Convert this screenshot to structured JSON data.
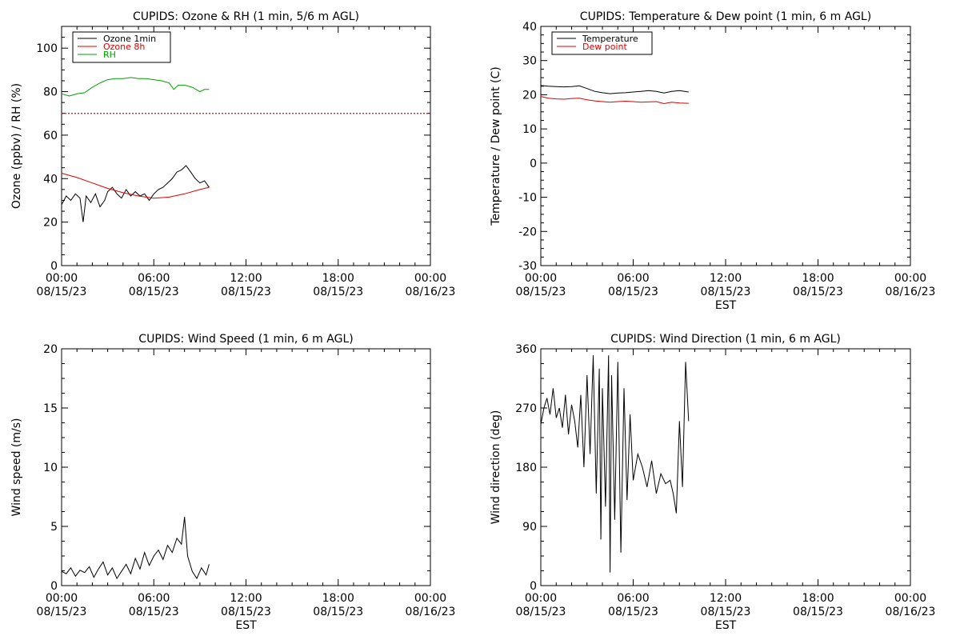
{
  "chart_data": [
    {
      "type": "line",
      "title": "CUPIDS: Ozone & RH (1 min, 5/6 m AGL)",
      "ylabel": "Ozone (ppbv) / RH (%)",
      "xlabel": "",
      "xlim": [
        0,
        24
      ],
      "ylim": [
        0,
        110
      ],
      "yticks": [
        0,
        20,
        40,
        60,
        80,
        100
      ],
      "xticks": [
        {
          "hour": 0,
          "time": "00:00",
          "date": "08/15/23"
        },
        {
          "hour": 6,
          "time": "06:00",
          "date": "08/15/23"
        },
        {
          "hour": 12,
          "time": "12:00",
          "date": "08/15/23"
        },
        {
          "hour": 18,
          "time": "18:00",
          "date": "08/15/23"
        },
        {
          "hour": 24,
          "time": "00:00",
          "date": "08/16/23"
        }
      ],
      "legend_position": "top-left",
      "reference_lines": [
        {
          "y": 70,
          "style": "dotted",
          "color": "#dd0000"
        }
      ],
      "series": [
        {
          "name": "Ozone 1min",
          "color": "#000000",
          "x": [
            0,
            0.3,
            0.6,
            0.9,
            1.2,
            1.4,
            1.6,
            1.9,
            2.2,
            2.5,
            2.8,
            3.0,
            3.3,
            3.6,
            3.9,
            4.2,
            4.5,
            4.8,
            5.1,
            5.4,
            5.7,
            6.0,
            6.3,
            6.6,
            6.9,
            7.2,
            7.5,
            7.8,
            8.1,
            8.4,
            8.7,
            9.0,
            9.3,
            9.6
          ],
          "y": [
            28,
            32,
            30,
            33,
            31,
            20,
            32,
            29,
            33,
            27,
            30,
            34,
            36,
            33,
            31,
            35,
            32,
            34,
            32,
            33,
            30,
            33,
            35,
            36,
            38,
            40,
            43,
            44,
            46,
            43,
            40,
            38,
            39,
            36
          ]
        },
        {
          "name": "Ozone 8h",
          "color": "#dd0000",
          "x": [
            0,
            1,
            2,
            3,
            4,
            5,
            6,
            7,
            8,
            9,
            9.6
          ],
          "y": [
            42.5,
            40.5,
            38,
            35.5,
            33.5,
            32,
            31,
            31.5,
            33,
            35,
            36
          ]
        },
        {
          "name": "RH",
          "color": "#00a000",
          "x": [
            0,
            0.5,
            1.0,
            1.5,
            2.0,
            2.5,
            3.0,
            3.5,
            4.0,
            4.5,
            5.0,
            5.5,
            6.0,
            6.5,
            7.0,
            7.3,
            7.6,
            8.0,
            8.5,
            9.0,
            9.3,
            9.6
          ],
          "y": [
            79,
            78,
            79,
            79.5,
            82,
            84,
            85.5,
            86,
            86,
            86.5,
            86,
            86,
            85.5,
            85,
            84,
            81,
            83,
            83,
            82,
            80,
            81,
            81
          ]
        }
      ]
    },
    {
      "type": "line",
      "title": "CUPIDS: Temperature & Dew point (1 min, 6 m AGL)",
      "ylabel": "Temperature / Dew point (C)",
      "xlabel": "EST",
      "xlim": [
        0,
        24
      ],
      "ylim": [
        -30,
        40
      ],
      "yticks": [
        -30,
        -20,
        -10,
        0,
        10,
        20,
        30,
        40
      ],
      "xticks": [
        {
          "hour": 0,
          "time": "00:00",
          "date": "08/15/23"
        },
        {
          "hour": 6,
          "time": "06:00",
          "date": "08/15/23"
        },
        {
          "hour": 12,
          "time": "12:00",
          "date": "08/15/23"
        },
        {
          "hour": 18,
          "time": "18:00",
          "date": "08/15/23"
        },
        {
          "hour": 24,
          "time": "00:00",
          "date": "08/16/23"
        }
      ],
      "legend_position": "top-left",
      "series": [
        {
          "name": "Temperature",
          "color": "#000000",
          "x": [
            0,
            0.5,
            1,
            1.5,
            2,
            2.5,
            3,
            3.5,
            4,
            4.5,
            5,
            5.5,
            6,
            6.5,
            7,
            7.5,
            8,
            8.5,
            9,
            9.6
          ],
          "y": [
            22.7,
            22.5,
            22.4,
            22.3,
            22.4,
            22.6,
            21.8,
            21.0,
            20.6,
            20.3,
            20.5,
            20.6,
            20.8,
            21.0,
            21.2,
            21.0,
            20.5,
            21.0,
            21.2,
            20.8
          ]
        },
        {
          "name": "Dew point",
          "color": "#dd0000",
          "x": [
            0,
            0.5,
            1,
            1.5,
            2,
            2.5,
            3,
            3.5,
            4,
            4.5,
            5,
            5.5,
            6,
            6.5,
            7,
            7.5,
            8,
            8.5,
            9,
            9.6
          ],
          "y": [
            19.5,
            19.0,
            18.8,
            18.7,
            18.9,
            19.0,
            18.5,
            18.2,
            18.0,
            17.8,
            18.0,
            18.1,
            18.0,
            17.8,
            17.9,
            18.0,
            17.4,
            17.8,
            17.6,
            17.5
          ]
        }
      ]
    },
    {
      "type": "line",
      "title": "CUPIDS: Wind Speed (1 min, 6 m AGL)",
      "ylabel": "Wind speed (m/s)",
      "xlabel": "EST",
      "xlim": [
        0,
        24
      ],
      "ylim": [
        0,
        20
      ],
      "yticks": [
        0,
        5,
        10,
        15,
        20
      ],
      "xticks": [
        {
          "hour": 0,
          "time": "00:00",
          "date": "08/15/23"
        },
        {
          "hour": 6,
          "time": "06:00",
          "date": "08/15/23"
        },
        {
          "hour": 12,
          "time": "12:00",
          "date": "08/15/23"
        },
        {
          "hour": 18,
          "time": "18:00",
          "date": "08/15/23"
        },
        {
          "hour": 24,
          "time": "00:00",
          "date": "08/16/23"
        }
      ],
      "series": [
        {
          "color": "#000000",
          "x": [
            0,
            0.3,
            0.6,
            0.9,
            1.2,
            1.5,
            1.8,
            2.1,
            2.4,
            2.7,
            3.0,
            3.3,
            3.6,
            3.9,
            4.2,
            4.5,
            4.8,
            5.1,
            5.4,
            5.7,
            6.0,
            6.3,
            6.6,
            6.9,
            7.2,
            7.5,
            7.8,
            8.0,
            8.2,
            8.5,
            8.8,
            9.1,
            9.4,
            9.6
          ],
          "y": [
            1.2,
            1.0,
            1.5,
            0.8,
            1.3,
            1.1,
            1.6,
            0.7,
            1.4,
            2.0,
            0.9,
            1.5,
            0.6,
            1.2,
            1.8,
            1.0,
            2.3,
            1.4,
            2.8,
            1.7,
            2.5,
            3.0,
            2.2,
            3.4,
            2.8,
            4.0,
            3.5,
            5.8,
            2.5,
            1.2,
            0.6,
            1.5,
            0.9,
            1.8
          ]
        }
      ]
    },
    {
      "type": "line",
      "title": "CUPIDS: Wind Direction (1 min, 6 m AGL)",
      "ylabel": "Wind direction (deg)",
      "xlabel": "EST",
      "xlim": [
        0,
        24
      ],
      "ylim": [
        0,
        360
      ],
      "yticks": [
        0,
        90,
        180,
        270,
        360
      ],
      "xticks": [
        {
          "hour": 0,
          "time": "00:00",
          "date": "08/15/23"
        },
        {
          "hour": 6,
          "time": "06:00",
          "date": "08/15/23"
        },
        {
          "hour": 12,
          "time": "12:00",
          "date": "08/15/23"
        },
        {
          "hour": 18,
          "time": "18:00",
          "date": "08/15/23"
        },
        {
          "hour": 24,
          "time": "00:00",
          "date": "08/16/23"
        }
      ],
      "series": [
        {
          "color": "#000000",
          "x": [
            0,
            0.2,
            0.4,
            0.6,
            0.8,
            1.0,
            1.2,
            1.4,
            1.6,
            1.8,
            2.0,
            2.2,
            2.4,
            2.6,
            2.8,
            3.0,
            3.2,
            3.4,
            3.6,
            3.8,
            3.9,
            4.0,
            4.2,
            4.4,
            4.5,
            4.6,
            4.8,
            5.0,
            5.2,
            5.4,
            5.6,
            5.8,
            6.0,
            6.3,
            6.6,
            6.9,
            7.2,
            7.5,
            7.8,
            8.1,
            8.4,
            8.6,
            8.8,
            9.0,
            9.2,
            9.4,
            9.6
          ],
          "y": [
            245,
            270,
            285,
            260,
            300,
            255,
            270,
            240,
            290,
            230,
            275,
            250,
            210,
            290,
            180,
            320,
            200,
            350,
            140,
            330,
            70,
            300,
            120,
            350,
            20,
            320,
            100,
            340,
            50,
            300,
            130,
            260,
            160,
            200,
            180,
            150,
            190,
            140,
            170,
            155,
            160,
            140,
            110,
            250,
            150,
            340,
            250
          ]
        }
      ]
    }
  ]
}
